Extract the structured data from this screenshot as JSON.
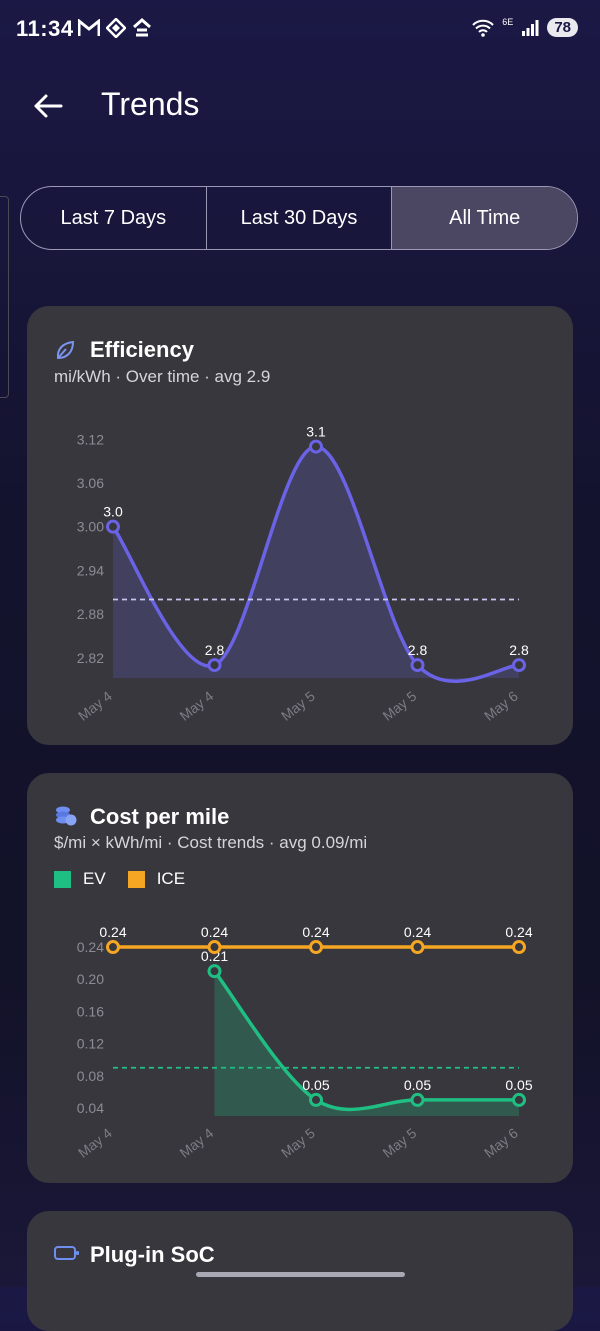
{
  "status": {
    "time": "11:34",
    "network": "6E",
    "battery": "78"
  },
  "header": {
    "title": "Trends"
  },
  "range_tabs": [
    {
      "label": "Last 7 Days",
      "active": false
    },
    {
      "label": "Last 30 Days",
      "active": false
    },
    {
      "label": "All Time",
      "active": true
    }
  ],
  "efficiency": {
    "title": "Efficiency",
    "subtitle": "mi/kWh · Over time · avg 2.9",
    "icon": "leaf-icon"
  },
  "cost": {
    "title": "Cost per mile",
    "subtitle": "$/mi × kWh/mi · Cost trends · avg 0.09/mi",
    "icon": "coins-icon",
    "legend": [
      {
        "label": "EV",
        "color": "#1fbf83"
      },
      {
        "label": "ICE",
        "color": "#f5a623"
      }
    ]
  },
  "soc": {
    "title": "Plug-in SoC",
    "icon": "battery-icon"
  },
  "chart_data": [
    {
      "type": "area",
      "categories": [
        "May 4",
        "May 4",
        "May 5",
        "May 5",
        "May 6"
      ],
      "series": [
        {
          "values": [
            3.0,
            2.81,
            3.11,
            2.81,
            2.81
          ],
          "labels": [
            "3.0",
            "2.8",
            "3.1",
            "2.8",
            "2.8"
          ],
          "color": "#6a63e6"
        }
      ],
      "yticks": [
        "3.12",
        "3.06",
        "3.00",
        "2.94",
        "2.88",
        "2.82"
      ],
      "ylim": [
        2.795,
        3.13
      ],
      "average": 2.9,
      "grid": false
    },
    {
      "type": "line",
      "categories": [
        "May 4",
        "May 4",
        "May 5",
        "May 5",
        "May 6"
      ],
      "series": [
        {
          "name": "EV",
          "values": [
            null,
            0.21,
            0.05,
            0.05,
            0.05
          ],
          "labels": [
            "",
            "0.21",
            "0.05",
            "0.05",
            "0.05"
          ],
          "color": "#1fbf83"
        },
        {
          "name": "ICE",
          "values": [
            0.24,
            0.24,
            0.24,
            0.24,
            0.24
          ],
          "labels": [
            "0.24",
            "0.24",
            "0.24",
            "0.24",
            "0.24"
          ],
          "color": "#f5a623"
        }
      ],
      "yticks": [
        "0.24",
        "0.20",
        "0.16",
        "0.12",
        "0.08",
        "0.04"
      ],
      "ylim": [
        0.03,
        0.245
      ],
      "average": 0.09,
      "grid": false
    }
  ]
}
